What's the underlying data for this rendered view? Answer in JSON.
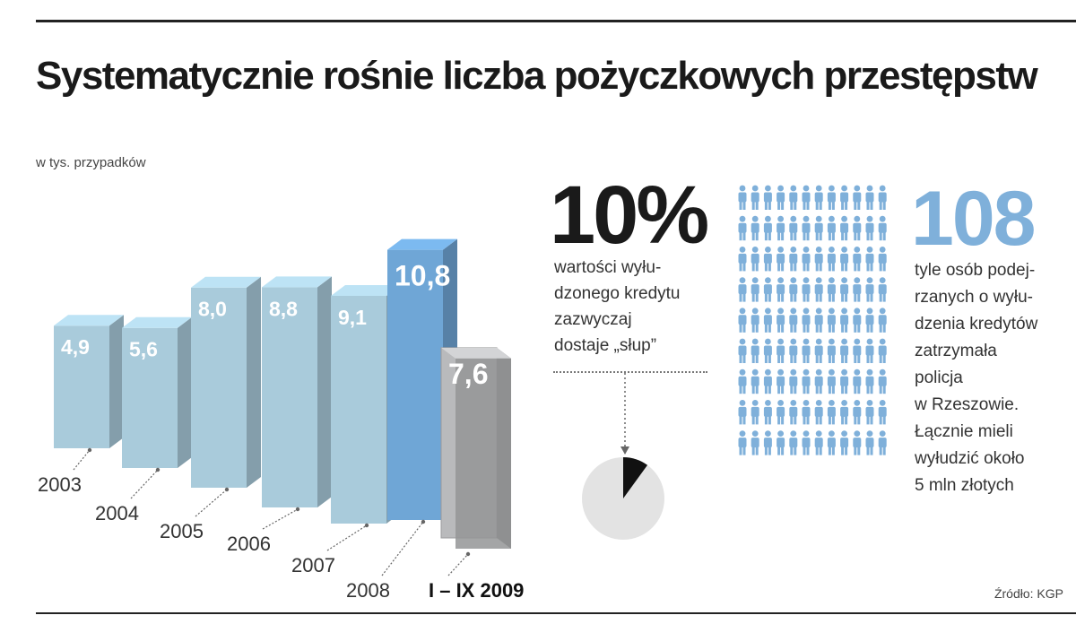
{
  "title": "Systematycznie rośnie liczba pożyczkowych przestępstw",
  "unit_label": "w tys. przypadków",
  "chart_data": {
    "type": "bar",
    "categories": [
      "2003",
      "2004",
      "2005",
      "2006",
      "2007",
      "2008",
      "I – IX 2009"
    ],
    "values": [
      4.9,
      5.6,
      8.0,
      8.8,
      9.1,
      10.8,
      7.6
    ],
    "value_labels": [
      "4,9",
      "5,6",
      "8,0",
      "8,8",
      "9,1",
      "10,8",
      "7,6"
    ],
    "bar_colors": [
      "#a9cbdb",
      "#a9cbdb",
      "#a9cbdb",
      "#a9cbdb",
      "#a9cbdb",
      "#6fa6d6",
      "#b9babc"
    ],
    "unit": "w tys. przypadków",
    "ylim": [
      0,
      11
    ]
  },
  "percent_block": {
    "value": "10%",
    "text": "wartości wyłu-\ndzonego kredytu\nzazwyczaj\ndostaje „słup”",
    "share": 0.1
  },
  "people_block": {
    "value": "108",
    "count": 108,
    "icon": "person-icon",
    "icon_color": "#7fb0da",
    "text": "tyle osób podej-\nrzanych o wyłu-\ndzenia kredytów\nzatrzymała\npolicja\nw Rzeszowie.\nŁącznie mieli\nwyłudzić około\n5 mln złotych"
  },
  "source": "Źródło: KGP"
}
